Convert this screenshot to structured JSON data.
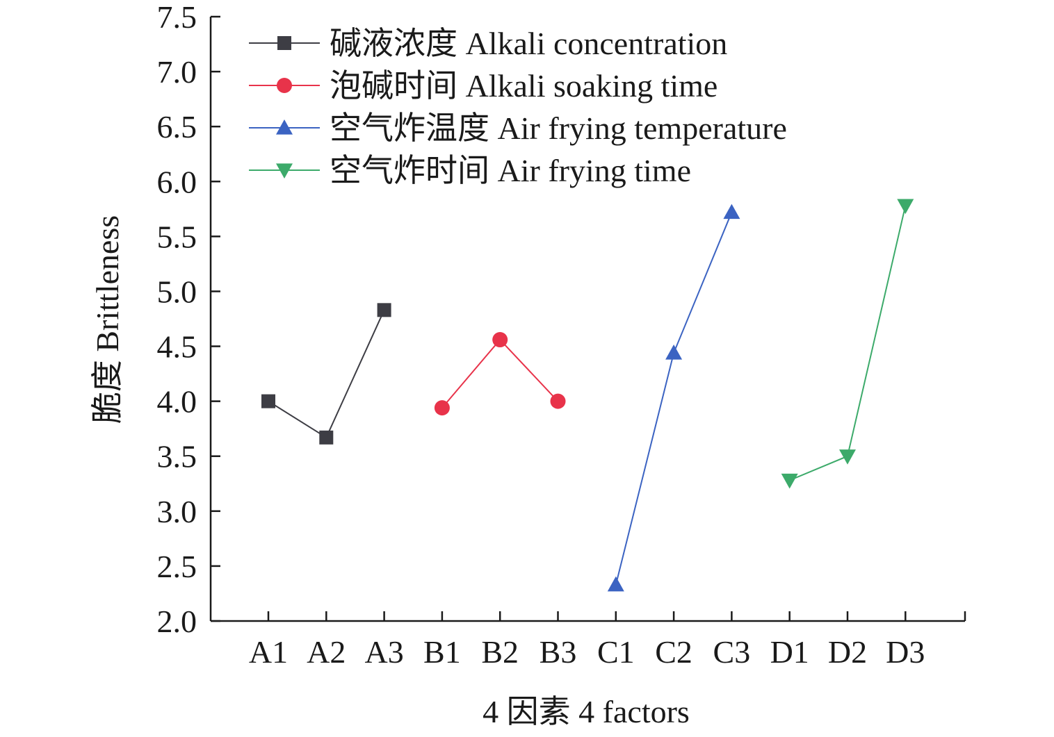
{
  "chart_data": {
    "type": "line",
    "title": "",
    "xlabel": "4 因素 4 factors",
    "ylabel": "脆度 Brittleness",
    "ylim": [
      2.0,
      7.5
    ],
    "yticks": [
      "2.0",
      "2.5",
      "3.0",
      "3.5",
      "4.0",
      "4.5",
      "5.0",
      "5.5",
      "6.0",
      "6.5",
      "7.0",
      "7.5"
    ],
    "categories": [
      "A1",
      "A2",
      "A3",
      "B1",
      "B2",
      "B3",
      "C1",
      "C2",
      "C3",
      "D1",
      "D2",
      "D3"
    ],
    "grid": false,
    "legend_position": "top-left",
    "series": [
      {
        "name": "碱液浓度 Alkali concentration",
        "marker": "square",
        "color": "#3d3d44",
        "x": [
          "A1",
          "A2",
          "A3"
        ],
        "values": [
          4.0,
          3.67,
          4.83
        ]
      },
      {
        "name": "泡碱时间 Alkali soaking time",
        "marker": "circle",
        "color": "#e8334a",
        "x": [
          "B1",
          "B2",
          "B3"
        ],
        "values": [
          3.94,
          4.56,
          4.0
        ]
      },
      {
        "name": "空气炸温度 Air frying temperature",
        "marker": "triangle-up",
        "color": "#3b63c2",
        "x": [
          "C1",
          "C2",
          "C3"
        ],
        "values": [
          2.33,
          4.44,
          5.72
        ]
      },
      {
        "name": "空气炸时间 Air frying time",
        "marker": "triangle-down",
        "color": "#3caa6a",
        "x": [
          "D1",
          "D2",
          "D3"
        ],
        "values": [
          3.28,
          3.5,
          5.78
        ]
      }
    ]
  }
}
